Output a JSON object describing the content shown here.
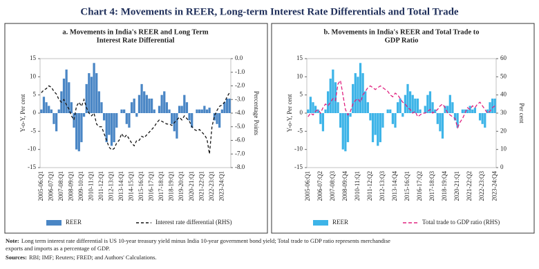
{
  "title": "Chart 4: Movements in REER, Long-term Interest Rate Differentials and Total Trade",
  "note": {
    "label": "Note:",
    "lines": [
      "Long term interest rate differential is US 10-year treasury yield minus India 10-year government bond yield; Total trade to GDP ratio represents merchandise",
      "exports and imports as a percentage of GDP."
    ]
  },
  "sources": {
    "label": "Sources:",
    "text": "RBI; IMF; Reuters;  FRED; and Authors' Calculations."
  },
  "chart_data": [
    {
      "type": "combo",
      "title": [
        "a. Movements in India's REER and Long Term",
        "Interest Rate Differential"
      ],
      "ylabel": "Y-o-Y, Per cent",
      "y2label": "Percentage Points",
      "categories": [
        "2005-06:Q1",
        null,
        null,
        null,
        "2006-07:Q1",
        null,
        null,
        null,
        "2007-08:Q1",
        null,
        null,
        null,
        "2008-09:Q1",
        null,
        null,
        null,
        "2009-10:Q1",
        null,
        null,
        null,
        "2010-11:Q1",
        null,
        null,
        null,
        "2011-12:Q1",
        null,
        null,
        null,
        "2012-13:Q1",
        null,
        null,
        null,
        "2013-14:Q1",
        null,
        null,
        null,
        "2014-15:Q1",
        null,
        null,
        null,
        "2015-16:Q1",
        null,
        null,
        null,
        "2016-17:Q1",
        null,
        null,
        null,
        "2017-18:Q1",
        null,
        null,
        null,
        "2018-19:Q1",
        null,
        null,
        null,
        "2019-20:Q1",
        null,
        null,
        null,
        "2020-21:Q1",
        null,
        null,
        null,
        "2021-22:Q1",
        null,
        null,
        null,
        "2022-23:Q1",
        null,
        null,
        null,
        "2023-24:Q1",
        null,
        null,
        null
      ],
      "series": [
        {
          "name": "REER",
          "kind": "bar",
          "color": "#4a86c5",
          "values": [
            1,
            4.5,
            3,
            2,
            1,
            -3,
            -5,
            1,
            6,
            9.5,
            12,
            8.5,
            3,
            -4,
            -10,
            -10.5,
            -8,
            -1,
            8,
            11,
            10,
            13.8,
            11,
            6,
            3,
            -2,
            -8,
            -6,
            -9,
            -8,
            -4,
            0,
            1,
            1,
            -3,
            -4,
            3,
            4,
            -1,
            5,
            8,
            6,
            5,
            4,
            4,
            1,
            0,
            2,
            5,
            6,
            3,
            1,
            -3,
            -5,
            -7,
            2,
            2,
            5,
            3,
            -2,
            -4,
            0,
            1,
            1,
            1,
            2,
            1,
            1.5,
            0,
            -2,
            -3,
            -4,
            1,
            3,
            4,
            4
          ]
        },
        {
          "name": "Interest rate differential (RHS)",
          "kind": "line",
          "axis": "y2",
          "color": "#111111",
          "dash": "4 3",
          "values": [
            -2.5,
            -2.3,
            -2.2,
            -2.0,
            -2.1,
            -2.4,
            -2.6,
            -3.0,
            -3.2,
            -3.0,
            -3.4,
            -3.7,
            -4.2,
            -4.5,
            -3.5,
            -3.2,
            -3.5,
            -3.0,
            -3.6,
            -4.0,
            -4.2,
            -4.0,
            -4.8,
            -5.0,
            -5.0,
            -5.5,
            -6.0,
            -6.5,
            -6.7,
            -6.6,
            -6.2,
            -6.0,
            -5.5,
            -5.8,
            -5.6,
            -5.9,
            -6.2,
            -6.4,
            -6.0,
            -6.0,
            -5.7,
            -5.8,
            -5.6,
            -5.4,
            -5.2,
            -5.0,
            -4.7,
            -4.5,
            -4.6,
            -4.7,
            -4.8,
            -4.8,
            -4.9,
            -4.7,
            -4.5,
            -4.3,
            -4.5,
            -4.2,
            -4.4,
            -4.6,
            -5.0,
            -5.2,
            -5.3,
            -5.2,
            -5.4,
            -5.6,
            -5.9,
            -7.0,
            -5.0,
            -4.2,
            -3.8,
            -3.5,
            -3.4,
            -3.2,
            -2.8,
            -2.5
          ]
        }
      ],
      "ylim": [
        -15,
        15
      ],
      "yticks": [
        -15,
        -10,
        -5,
        0,
        5,
        10,
        15
      ],
      "y2lim": [
        -8,
        0
      ],
      "y2ticks": [
        {
          "value": -8,
          "label": "-8.0"
        },
        {
          "value": -7,
          "label": "-7.0"
        },
        {
          "value": -6,
          "label": "-6.0"
        },
        {
          "value": -5,
          "label": "-5.0"
        },
        {
          "value": -4,
          "label": "-4.0"
        },
        {
          "value": -3,
          "label": "-3.0"
        },
        {
          "value": -2,
          "label": "-2.0"
        },
        {
          "value": -1,
          "label": "-1.0"
        },
        {
          "value": 0,
          "label": "0.0"
        }
      ]
    },
    {
      "type": "combo",
      "title": [
        "b. Movements in India's REER and Total Trade to",
        "GDP Ratio"
      ],
      "ylabel": "Y-o-Y, Per cent",
      "y2label": "Per cent",
      "categories": [
        "2005-06:Q1",
        null,
        null,
        null,
        null,
        "2006-07:Q2",
        null,
        null,
        null,
        null,
        "2007-08:Q3",
        null,
        null,
        null,
        null,
        "2008-09:Q4",
        null,
        null,
        null,
        null,
        "2010-11:Q1",
        null,
        null,
        null,
        null,
        "2011-12:Q2",
        null,
        null,
        null,
        null,
        "2012-13:Q3",
        null,
        null,
        null,
        null,
        "2013-14:Q4",
        null,
        null,
        null,
        null,
        "2015-16:Q1",
        null,
        null,
        null,
        null,
        "2016-17:Q2",
        null,
        null,
        null,
        null,
        "2017-18:Q3",
        null,
        null,
        null,
        null,
        "2018-19:Q4",
        null,
        null,
        null,
        null,
        "2020-21:Q1",
        null,
        null,
        null,
        null,
        "2021-22:Q2",
        null,
        null,
        null,
        null,
        "2022-23:Q3",
        null,
        null,
        null,
        null,
        "2023-24:Q4"
      ],
      "series": [
        {
          "name": "REER",
          "kind": "bar",
          "color": "#3db4e8",
          "values": [
            1,
            4.5,
            3,
            2,
            1,
            -3,
            -5,
            1,
            6,
            9.5,
            12,
            8.5,
            3,
            -4,
            -10,
            -10.5,
            -8,
            -1,
            8,
            11,
            10,
            13.8,
            11,
            6,
            3,
            -2,
            -8,
            -6,
            -9,
            -8,
            -4,
            0,
            1,
            1,
            -3,
            -4,
            3,
            4,
            -1,
            5,
            8,
            6,
            5,
            4,
            4,
            1,
            0,
            2,
            5,
            6,
            3,
            1,
            -3,
            -5,
            -7,
            2,
            2,
            5,
            3,
            -2,
            -4,
            0,
            1,
            1,
            1,
            2,
            1,
            1.5,
            0,
            -2,
            -3,
            -4,
            1,
            3,
            4,
            4
          ]
        },
        {
          "name": "Total trade to GDP ratio (RHS)",
          "kind": "line",
          "axis": "y2",
          "color": "#e0207f",
          "dash": "5 3",
          "values": [
            28,
            30,
            29,
            31,
            32,
            30,
            33,
            35,
            34,
            36,
            38,
            37,
            46,
            48,
            40,
            32,
            29,
            31,
            35,
            37,
            38,
            36,
            40,
            42,
            44,
            45,
            44,
            43,
            44,
            45,
            44,
            43,
            42,
            40,
            39,
            41,
            40,
            38,
            36,
            35,
            33,
            32,
            30,
            31,
            28,
            29,
            30,
            30,
            31,
            32,
            30,
            31,
            32,
            34,
            35,
            33,
            30,
            29,
            28,
            27,
            22,
            25,
            27,
            30,
            33,
            32,
            34,
            33,
            35,
            36,
            34,
            32,
            30,
            31,
            33,
            34
          ]
        }
      ],
      "ylim": [
        -15,
        15
      ],
      "yticks": [
        -15,
        -10,
        -5,
        0,
        5,
        10,
        15
      ],
      "y2lim": [
        0,
        60
      ],
      "y2ticks": [
        0,
        10,
        20,
        30,
        40,
        50,
        60
      ]
    }
  ]
}
